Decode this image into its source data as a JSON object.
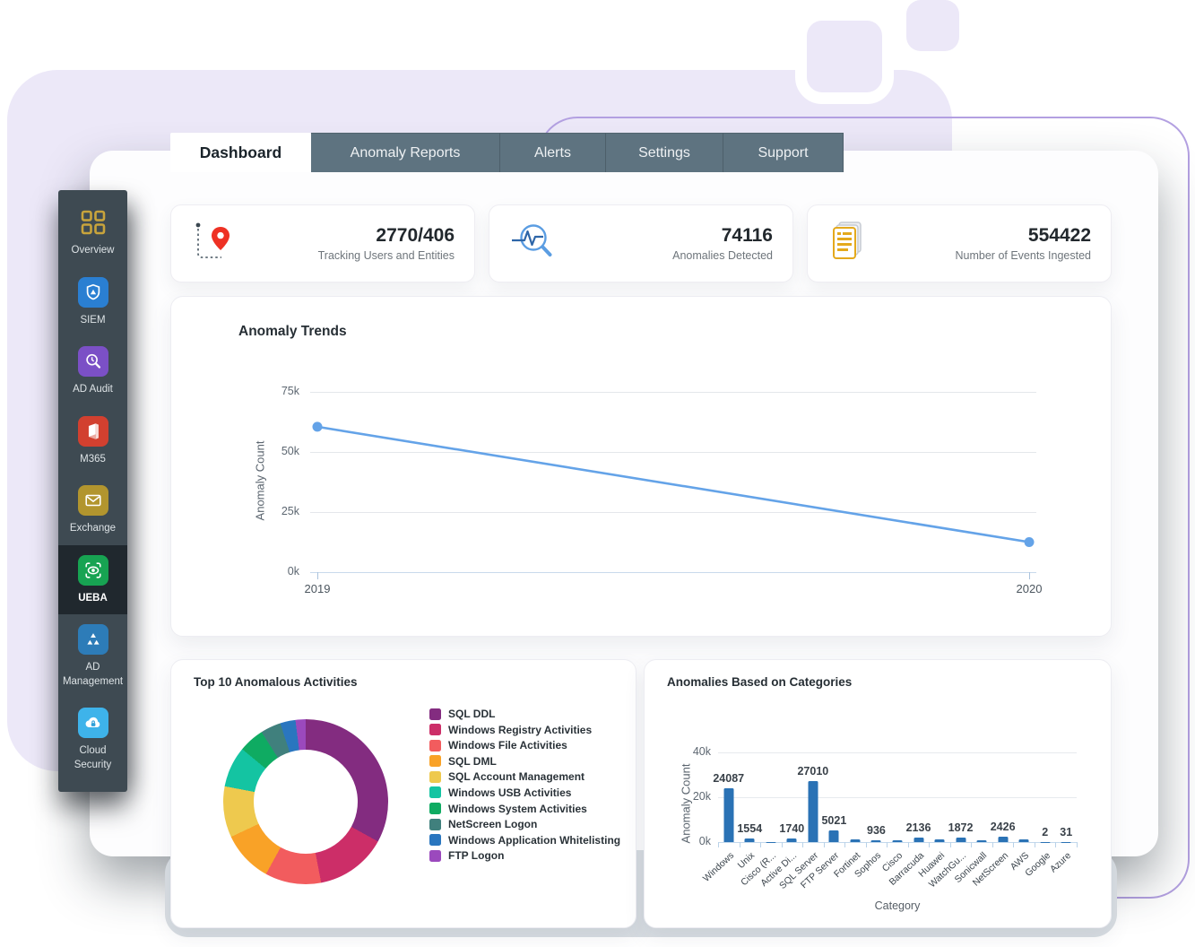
{
  "tabs": [
    {
      "label": "Dashboard",
      "active": true
    },
    {
      "label": "Anomaly Reports",
      "active": false
    },
    {
      "label": "Alerts",
      "active": false
    },
    {
      "label": "Settings",
      "active": false
    },
    {
      "label": "Support",
      "active": false
    }
  ],
  "sidebar": {
    "items": [
      {
        "label": "Overview",
        "icon": "grid-icon",
        "tile_color": "transparent",
        "active": false
      },
      {
        "label": "SIEM",
        "icon": "shield-icon",
        "tile_color": "#2a7fd2",
        "active": false
      },
      {
        "label": "AD Audit",
        "icon": "audit-magnifier-icon",
        "tile_color": "#7b50c6",
        "active": false
      },
      {
        "label": "M365",
        "icon": "office-icon",
        "tile_color": "#d2402f",
        "active": false
      },
      {
        "label": "Exchange",
        "icon": "envelope-icon",
        "tile_color": "#b2952e",
        "active": false
      },
      {
        "label": "UEBA",
        "icon": "eye-scan-icon",
        "tile_color": "#17a352",
        "active": true
      },
      {
        "label": "AD Management",
        "icon": "triangles-icon",
        "tile_color": "#2d7cb8",
        "active": false
      },
      {
        "label": "Cloud Security",
        "icon": "cloud-lock-icon",
        "tile_color": "#3eb3ea",
        "active": false
      }
    ]
  },
  "stats": [
    {
      "value": "2770/406",
      "label": "Tracking Users and Entities",
      "icon": "route-pin-icon"
    },
    {
      "value": "74116",
      "label": "Anomalies Detected",
      "icon": "anomaly-search-icon"
    },
    {
      "value": "554422",
      "label": "Number of Events Ingested",
      "icon": "event-docs-icon"
    }
  ],
  "chart_data": [
    {
      "id": "anomaly_trends",
      "type": "line",
      "title": "Anomaly Trends",
      "x": [
        "2019",
        "2020"
      ],
      "values": [
        60500,
        12500
      ],
      "ylabel": "Anomaly Count",
      "yticks": [
        "0k",
        "25k",
        "50k",
        "75k"
      ],
      "ylim": [
        0,
        75000
      ],
      "line_color": "#64a3e8"
    },
    {
      "id": "top_anomalous_activities",
      "type": "donut",
      "title": "Top 10 Anomalous Activities",
      "legend_position": "right",
      "slices": [
        {
          "label": "SQL DDL",
          "percent": 33,
          "color": "#832c80"
        },
        {
          "label": "Windows Registry Activities",
          "percent": 14,
          "color": "#cc2e68"
        },
        {
          "label": "Windows File Activities",
          "percent": 11,
          "color": "#f25c5e"
        },
        {
          "label": "SQL DML",
          "percent": 10,
          "color": "#f9a227"
        },
        {
          "label": "SQL Account Management",
          "percent": 10,
          "color": "#eec94e"
        },
        {
          "label": "Windows USB Activities",
          "percent": 8,
          "color": "#14c4a2"
        },
        {
          "label": "Windows System Activities",
          "percent": 5,
          "color": "#0fab62"
        },
        {
          "label": "NetScreen Logon",
          "percent": 4,
          "color": "#40807d"
        },
        {
          "label": "Windows Application Whitelisting",
          "percent": 3,
          "color": "#2a76bf"
        },
        {
          "label": "FTP Logon",
          "percent": 2,
          "color": "#9b49bd"
        }
      ]
    },
    {
      "id": "anomalies_by_category",
      "type": "bar",
      "title": "Anomalies Based on Categories",
      "categories": [
        "Windows",
        "Unix",
        "Cisco (R...",
        "Active Di...",
        "SQL Server",
        "FTP Server",
        "Fortinet",
        "Sophos",
        "Cisco",
        "Barracuda",
        "Huawei",
        "WatchGu...",
        "Sonicwall",
        "NetScreen",
        "AWS",
        "Google",
        "Azure"
      ],
      "values": [
        24087,
        1554,
        20,
        1740,
        27010,
        5021,
        1100,
        936,
        1000,
        2136,
        1300,
        1872,
        800,
        2426,
        1200,
        2,
        31
      ],
      "data_labels": [
        "24087",
        "1554",
        "",
        "1740",
        "27010",
        "5021",
        "",
        "936",
        "",
        "2136",
        "",
        "1872",
        "",
        "2426",
        "",
        "2",
        "31"
      ],
      "xlabel": "Category",
      "ylabel": "Anomaly Count",
      "yticks": [
        "0k",
        "20k",
        "40k"
      ],
      "ylim": [
        0,
        40000
      ],
      "bar_color": "#2a72b5"
    }
  ]
}
